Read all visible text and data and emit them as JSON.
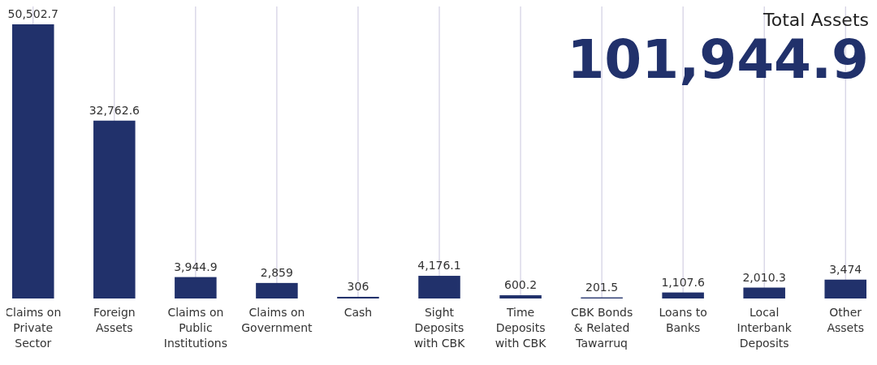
{
  "chart_data": {
    "type": "bar",
    "title": "Total Assets",
    "subtitle": "101,944.9",
    "categories": [
      "Claims on Private Sector",
      "Foreign Assets",
      "Claims on Public Institutions",
      "Claims on Government",
      "Cash",
      "Sight Deposits with CBK",
      "Time Deposits with CBK",
      "CBK Bonds & Related Tawarruq",
      "Loans to Banks",
      "Local Interbank Deposits",
      "Other Assets"
    ],
    "values": [
      50502.7,
      32762.6,
      3944.9,
      2859,
      306,
      4176.1,
      600.2,
      201.5,
      1107.6,
      2010.3,
      3474
    ],
    "value_labels": [
      "50,502.7",
      "32,762.6",
      "3,944.9",
      "2,859",
      "306",
      "4,176.1",
      "600.2",
      "201.5",
      "1,107.6",
      "2,010.3",
      "3,474"
    ],
    "color": "#21316b",
    "grid": "x"
  }
}
